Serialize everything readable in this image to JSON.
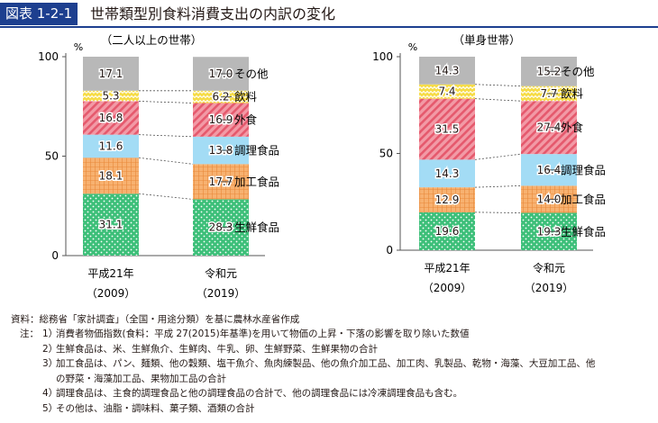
{
  "figure_label": "図表 1-2-1",
  "figure_title": "世帯類型別食料消費支出の内訳の変化",
  "chart_data": [
    {
      "type": "bar",
      "stacked": true,
      "subtitle": "（二人以上の世帯）",
      "y_unit": "%",
      "ylim": [
        0,
        100
      ],
      "yticks": [
        "0",
        "50",
        "100"
      ],
      "categories": [
        "平成21年",
        "令和元"
      ],
      "category_sub": [
        "（2009）",
        "（2019）"
      ],
      "series": [
        {
          "name": "生鮮食品",
          "values": [
            31.1,
            28.3
          ],
          "labels": [
            "31.1",
            "28.3"
          ]
        },
        {
          "name": "加工食品",
          "values": [
            18.1,
            17.7
          ],
          "labels": [
            "18.1",
            "17.7"
          ]
        },
        {
          "name": "調理食品",
          "values": [
            11.6,
            13.8
          ],
          "labels": [
            "11.6",
            "13.8"
          ]
        },
        {
          "name": "外食",
          "values": [
            16.8,
            16.9
          ],
          "labels": [
            "16.8",
            "16.9"
          ]
        },
        {
          "name": "飲料",
          "values": [
            5.3,
            6.2
          ],
          "labels": [
            "5.3",
            "6.2"
          ]
        },
        {
          "name": "その他",
          "values": [
            17.1,
            17.0
          ],
          "labels": [
            "17.1",
            "17.0"
          ]
        }
      ]
    },
    {
      "type": "bar",
      "stacked": true,
      "subtitle": "（単身世帯）",
      "y_unit": "%",
      "ylim": [
        0,
        100
      ],
      "yticks": [
        "0",
        "50",
        "100"
      ],
      "categories": [
        "平成21年",
        "令和元"
      ],
      "category_sub": [
        "（2009）",
        "（2019）"
      ],
      "series": [
        {
          "name": "生鮮食品",
          "values": [
            19.6,
            19.3
          ],
          "labels": [
            "19.6",
            "19.3"
          ]
        },
        {
          "name": "加工食品",
          "values": [
            12.9,
            14.0
          ],
          "labels": [
            "12.9",
            "14.0"
          ]
        },
        {
          "name": "調理食品",
          "values": [
            14.3,
            16.4
          ],
          "labels": [
            "14.3",
            "16.4"
          ]
        },
        {
          "name": "外食",
          "values": [
            31.5,
            27.4
          ],
          "labels": [
            "31.5",
            "27.4"
          ]
        },
        {
          "name": "飲料",
          "values": [
            7.4,
            7.7
          ],
          "labels": [
            "7.4",
            "7.7"
          ]
        },
        {
          "name": "その他",
          "values": [
            14.3,
            15.2
          ],
          "labels": [
            "14.3",
            "15.2"
          ]
        }
      ]
    }
  ],
  "series_colors": {
    "生鮮食品": "#3dbf79",
    "加工食品": "#f4a259",
    "調理食品": "#a3dcf5",
    "外食": "#ef7f8f",
    "飲料": "#f3d33a",
    "その他": "#b8b8b8"
  },
  "notes": {
    "source": "資料：総務省「家計調査」（全国・用途分類）を基に農林水産省作成",
    "note_label": "注：",
    "items": [
      {
        "num": "1）",
        "text": "消費者物価指数(食料：平成 27(2015)年基準)を用いて物価の上昇・下落の影響を取り除いた数値"
      },
      {
        "num": "2）",
        "text": "生鮮食品は、米、生鮮魚介、生鮮肉、牛乳、卵、生鮮野菜、生鮮果物の合計"
      },
      {
        "num": "3）",
        "text": "加工食品は、パン、麺類、他の穀類、塩干魚介、魚肉練製品、他の魚介加工品、加工肉、乳製品、乾物・海藻、大豆加工品、他"
      },
      {
        "num": "",
        "text": "の野菜・海藻加工品、果物加工品の合計"
      },
      {
        "num": "4）",
        "text": "調理食品は、主食的調理食品と他の調理食品の合計で、他の調理食品には冷凍調理食品も含む。"
      },
      {
        "num": "5）",
        "text": "その他は、油脂・調味料、菓子類、酒類の合計"
      }
    ]
  }
}
